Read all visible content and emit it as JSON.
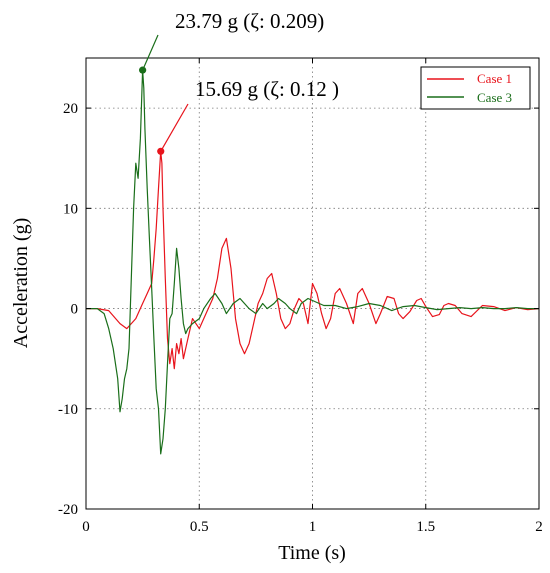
{
  "chart_data": {
    "type": "line",
    "title": "",
    "xlabel": "Time (s)",
    "ylabel": "Acceleration (g)",
    "xlim": [
      0,
      2
    ],
    "ylim": [
      -20,
      25
    ],
    "xticks": [
      0,
      0.5,
      1,
      1.5,
      2
    ],
    "xtick_labels": [
      "0",
      "0.5",
      "1",
      "1.5",
      "2"
    ],
    "yticks": [
      -20,
      -10,
      0,
      10,
      20
    ],
    "ytick_labels": [
      "-20",
      "-10",
      "0",
      "10",
      "20"
    ],
    "grid": true,
    "legend_position": "top-right",
    "series": [
      {
        "name": "Case 1",
        "color": "#e8141c",
        "x": [
          0,
          0.05,
          0.1,
          0.15,
          0.18,
          0.2,
          0.22,
          0.25,
          0.27,
          0.29,
          0.3,
          0.31,
          0.32,
          0.33,
          0.335,
          0.34,
          0.35,
          0.36,
          0.37,
          0.38,
          0.39,
          0.4,
          0.41,
          0.42,
          0.43,
          0.45,
          0.47,
          0.5,
          0.53,
          0.56,
          0.58,
          0.6,
          0.62,
          0.64,
          0.66,
          0.68,
          0.7,
          0.72,
          0.74,
          0.76,
          0.78,
          0.8,
          0.82,
          0.84,
          0.86,
          0.88,
          0.9,
          0.92,
          0.94,
          0.96,
          0.98,
          1.0,
          1.02,
          1.04,
          1.06,
          1.08,
          1.1,
          1.12,
          1.15,
          1.18,
          1.2,
          1.22,
          1.25,
          1.28,
          1.3,
          1.33,
          1.36,
          1.38,
          1.4,
          1.43,
          1.46,
          1.48,
          1.5,
          1.53,
          1.56,
          1.58,
          1.6,
          1.63,
          1.66,
          1.7,
          1.75,
          1.8,
          1.85,
          1.9,
          1.95,
          2.0
        ],
        "y": [
          0,
          0,
          -0.2,
          -1.5,
          -2.0,
          -1.5,
          -1.0,
          0.5,
          1.5,
          2.5,
          5.0,
          8.0,
          12.0,
          15.69,
          14.5,
          10.0,
          3.0,
          -3.0,
          -5.5,
          -4.0,
          -6.0,
          -3.5,
          -4.5,
          -3.0,
          -5.0,
          -3.0,
          -1.0,
          -2.0,
          -0.5,
          1.0,
          3.0,
          6.0,
          7.0,
          4.0,
          -1.0,
          -3.5,
          -4.5,
          -3.5,
          -1.5,
          0.5,
          1.5,
          3.0,
          3.5,
          1.5,
          -1.0,
          -2.0,
          -1.5,
          0.0,
          1.0,
          0.5,
          -1.5,
          2.5,
          1.5,
          -0.5,
          -2.0,
          -1.0,
          1.5,
          2.0,
          0.5,
          -1.5,
          1.5,
          2.0,
          0.5,
          -1.5,
          -0.5,
          1.2,
          1.0,
          -0.5,
          -1.0,
          -0.3,
          0.8,
          1.0,
          0.2,
          -0.8,
          -0.6,
          0.3,
          0.5,
          0.3,
          -0.5,
          -0.8,
          0.3,
          0.2,
          -0.2,
          0.1,
          -0.1,
          0
        ]
      },
      {
        "name": "Case 3",
        "color": "#1a6e1a",
        "x": [
          0,
          0.05,
          0.08,
          0.1,
          0.12,
          0.14,
          0.15,
          0.16,
          0.17,
          0.18,
          0.19,
          0.2,
          0.21,
          0.22,
          0.23,
          0.24,
          0.25,
          0.255,
          0.26,
          0.27,
          0.28,
          0.29,
          0.3,
          0.31,
          0.32,
          0.33,
          0.34,
          0.35,
          0.36,
          0.37,
          0.38,
          0.39,
          0.4,
          0.41,
          0.42,
          0.43,
          0.44,
          0.45,
          0.47,
          0.5,
          0.52,
          0.55,
          0.57,
          0.6,
          0.62,
          0.65,
          0.68,
          0.7,
          0.72,
          0.75,
          0.78,
          0.8,
          0.83,
          0.85,
          0.88,
          0.9,
          0.93,
          0.95,
          0.98,
          1.0,
          1.05,
          1.1,
          1.15,
          1.2,
          1.25,
          1.3,
          1.35,
          1.4,
          1.45,
          1.5,
          1.55,
          1.6,
          1.65,
          1.7,
          1.75,
          1.8,
          1.85,
          1.9,
          1.95,
          2.0
        ],
        "y": [
          0,
          0,
          -0.5,
          -2.0,
          -4.0,
          -7.0,
          -10.3,
          -9.0,
          -7.0,
          -6.0,
          -4.0,
          3.0,
          10.0,
          14.5,
          13.0,
          17.0,
          23.79,
          22.0,
          18.0,
          12.0,
          7.0,
          2.0,
          -3.0,
          -8.0,
          -10.0,
          -14.5,
          -13.0,
          -10.0,
          -5.5,
          -1.0,
          -0.5,
          2.5,
          6.0,
          4.0,
          1.0,
          -1.5,
          -2.5,
          -2.0,
          -1.5,
          -1.0,
          0.0,
          1.0,
          1.5,
          0.5,
          -0.5,
          0.5,
          1.0,
          0.5,
          0.0,
          -0.5,
          0.5,
          0.0,
          0.5,
          1.0,
          0.5,
          0.0,
          -0.5,
          0.5,
          1.0,
          0.8,
          0.3,
          0.3,
          0.0,
          0.2,
          0.5,
          0.3,
          -0.2,
          0.2,
          0.3,
          0.1,
          -0.1,
          0.0,
          0.1,
          0.0,
          0.1,
          0.0,
          0.0,
          0.1,
          0.0,
          0.0
        ]
      }
    ],
    "annotations": [
      {
        "text": "23.79 g (ζ: 0.209)",
        "series": "Case 3",
        "x": 0.25,
        "y": 23.79,
        "color": "#1a6e1a"
      },
      {
        "text": "15.69 g (ζ: 0.12 )",
        "series": "Case 1",
        "x": 0.33,
        "y": 15.69,
        "color": "#e8141c"
      }
    ]
  },
  "legend": {
    "items": [
      {
        "label": "Case 1",
        "color": "#e8141c"
      },
      {
        "label": "Case 3",
        "color": "#1a6e1a"
      }
    ]
  }
}
